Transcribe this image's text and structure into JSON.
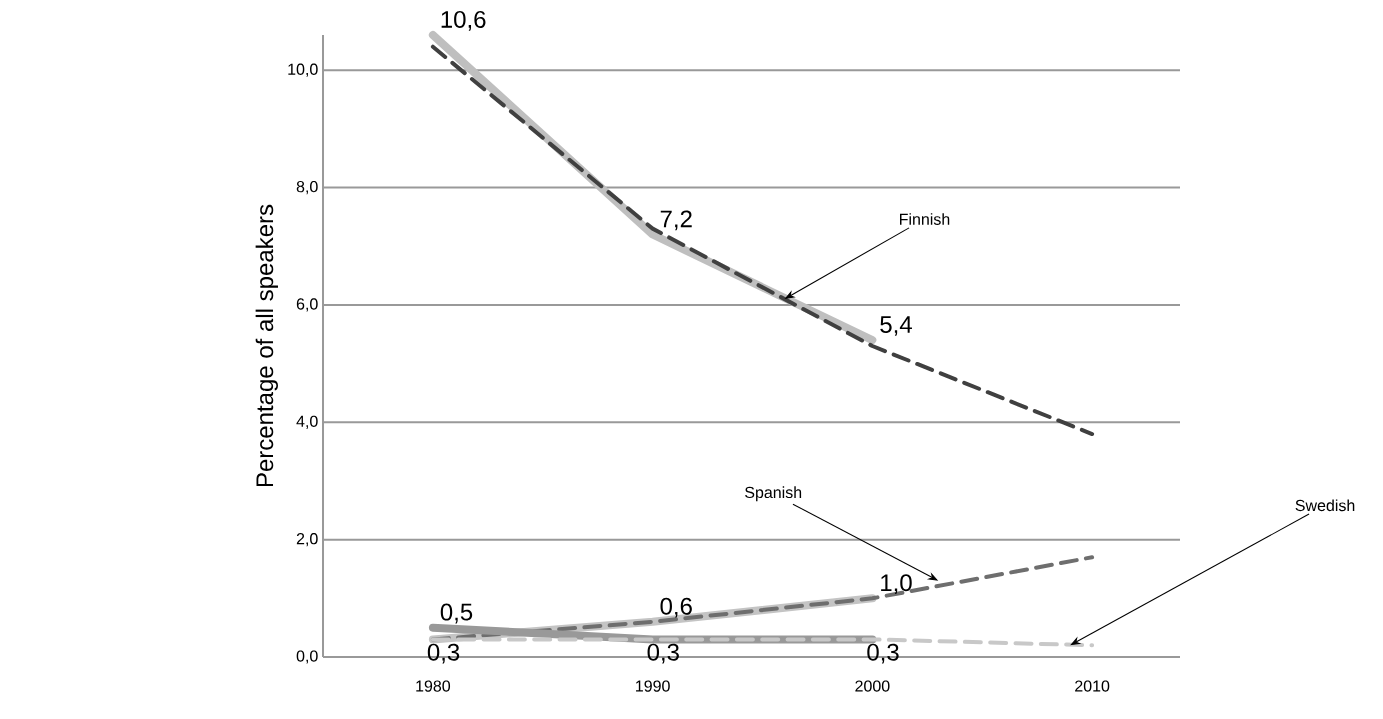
{
  "chart_data": {
    "type": "line",
    "ylabel": "Percentage of all speakers",
    "x": [
      1980,
      1990,
      2000,
      2010
    ],
    "xlim": [
      1975,
      2014
    ],
    "ylim": [
      0,
      10.6
    ],
    "xticks": [
      1980,
      1990,
      2000,
      2010
    ],
    "yticks": [
      {
        "value": 0,
        "label": "0,0"
      },
      {
        "value": 2,
        "label": "2,0"
      },
      {
        "value": 4,
        "label": "4,0"
      },
      {
        "value": 6,
        "label": "6,0"
      },
      {
        "value": 8,
        "label": "8,0"
      },
      {
        "value": 10,
        "label": "10,0"
      }
    ],
    "grid": "y",
    "marker": "none",
    "series": [
      {
        "color": "#bfbfbf",
        "line_style": "solid",
        "x": [
          1980,
          1990,
          2000
        ],
        "values": [
          10.6,
          7.2,
          5.4
        ],
        "value_labels": [
          "10,6",
          "7,2",
          "5,4"
        ]
      },
      {
        "color": "#404040",
        "line_style": "dashed",
        "values": [
          10.4,
          7.3,
          5.3,
          3.8
        ]
      },
      {
        "color": "#c4c4c4",
        "line_style": "solid",
        "x": [
          1980,
          1990,
          2000
        ],
        "values": [
          0.3,
          0.6,
          1.0
        ],
        "value_labels": [
          "0,3",
          "0,6",
          "1,0"
        ]
      },
      {
        "color": "#6e6e6e",
        "line_style": "dashed",
        "values": [
          0.3,
          0.6,
          1.0,
          1.7
        ]
      },
      {
        "color": "#999999",
        "line_style": "solid",
        "x": [
          1980,
          1990,
          2000
        ],
        "values": [
          0.5,
          0.3,
          0.3
        ],
        "value_labels": [
          "0,5",
          "0,3",
          "0,3"
        ]
      },
      {
        "color": "#c8c8c8",
        "line_style": "dashed",
        "values": [
          0.3,
          0.3,
          0.3,
          0.2
        ]
      }
    ],
    "annotations": [
      {
        "text": "Finnish",
        "x": 1996,
        "y": 6.1
      },
      {
        "text": "Spanish",
        "x": 2003,
        "y": 1.3
      },
      {
        "text": "Swedish",
        "x": 2009,
        "y": 0.2
      }
    ]
  }
}
